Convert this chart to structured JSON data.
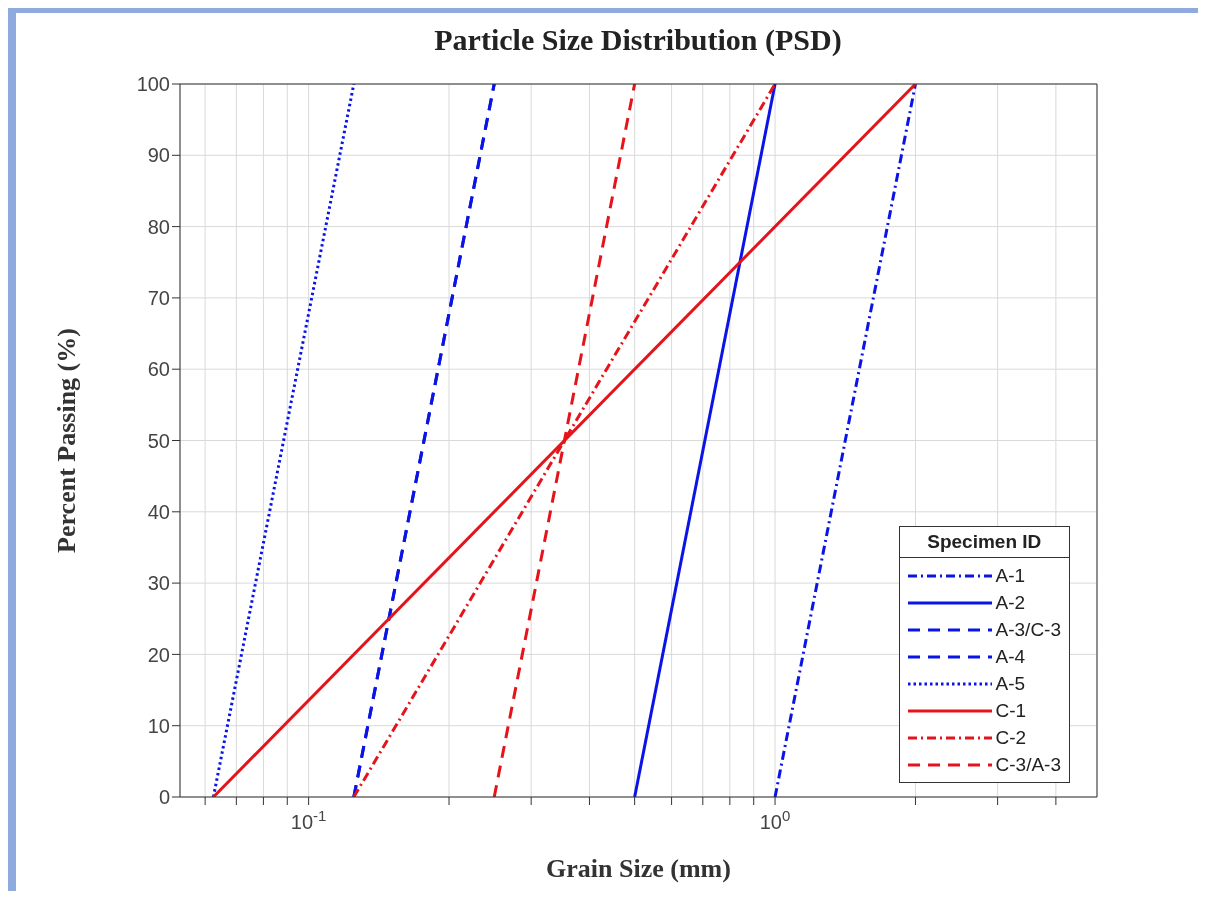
{
  "chart_data": {
    "type": "line",
    "title": "Particle Size Distribution (PSD)",
    "xlabel": "Grain Size (mm)",
    "ylabel": "Percent Passing (%)",
    "legend_title": "Specimen ID",
    "log": "x",
    "grid": true,
    "legend": "bottom right",
    "marker": "none",
    "xlim": [
      0.053,
      4.9
    ],
    "xticks": [
      {
        "value": 0.06,
        "label": null
      },
      {
        "value": 0.07,
        "label": null
      },
      {
        "value": 0.08,
        "label": null
      },
      {
        "value": 0.09,
        "label": null
      },
      {
        "value": 0.1,
        "label": "10$^{-1}$"
      },
      {
        "value": 0.2,
        "label": null
      },
      {
        "value": 0.3,
        "label": null
      },
      {
        "value": 0.4,
        "label": null
      },
      {
        "value": 0.5,
        "label": null
      },
      {
        "value": 0.6,
        "label": null
      },
      {
        "value": 0.7,
        "label": null
      },
      {
        "value": 0.8,
        "label": null
      },
      {
        "value": 0.9,
        "label": null
      },
      {
        "value": 1,
        "label": "10$^{0}$"
      },
      {
        "value": 2,
        "label": null
      },
      {
        "value": 3,
        "label": null
      },
      {
        "value": 4,
        "label": null
      }
    ],
    "ylim": [
      0,
      100
    ],
    "yticks": [
      0,
      10,
      20,
      30,
      40,
      50,
      60,
      70,
      80,
      90,
      100
    ],
    "series": [
      {
        "name": "A-1",
        "color": "#0a14e6",
        "line_style": "dashdot",
        "x": [
          1.0,
          2.0
        ],
        "values": [
          0,
          100
        ]
      },
      {
        "name": "A-2",
        "color": "#0a14e6",
        "line_style": "solid",
        "x": [
          0.5,
          1.0
        ],
        "values": [
          0,
          100
        ]
      },
      {
        "name": "A-3/C-3",
        "color": "#0a14e6",
        "line_style": "dashed",
        "x": [
          0.125,
          0.25
        ],
        "values": [
          0,
          100
        ]
      },
      {
        "name": "A-4",
        "color": "#0a14e6",
        "line_style": "dashed",
        "x": [
          0.125,
          0.25
        ],
        "values": [
          0,
          100
        ]
      },
      {
        "name": "A-5",
        "color": "#0a14e6",
        "line_style": "dotted",
        "x": [
          0.0625,
          0.125
        ],
        "values": [
          0,
          100
        ]
      },
      {
        "name": "C-1",
        "color": "#e5141b",
        "line_style": "solid",
        "x": [
          0.0625,
          2.0
        ],
        "values": [
          0,
          100
        ]
      },
      {
        "name": "C-2",
        "color": "#e5141b",
        "line_style": "dashdot",
        "x": [
          0.125,
          1.0
        ],
        "values": [
          0,
          100
        ]
      },
      {
        "name": "C-3/A-3",
        "color": "#e5141b",
        "line_style": "dashed",
        "x": [
          0.25,
          0.5
        ],
        "values": [
          0,
          100
        ]
      }
    ]
  }
}
